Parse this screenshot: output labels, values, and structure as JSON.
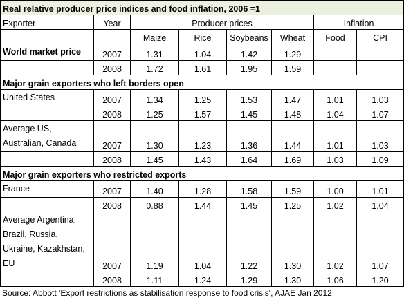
{
  "title": "Real relative producer price indices and food inflation, 2006 =1",
  "header": {
    "exporter": "Exporter",
    "year": "Year",
    "producer_prices": "Producer prices",
    "inflation": "Inflation",
    "columns": [
      "Maize",
      "Rice",
      "Soybeans",
      "Wheat",
      "Food",
      "CPI"
    ]
  },
  "groups": [
    {
      "heading": null,
      "entries": [
        {
          "exporter": "World market price",
          "rows": [
            {
              "year": "2007",
              "values": [
                "1.31",
                "1.04",
                "1.42",
                "1.29",
                null,
                null
              ]
            },
            {
              "year": "2008",
              "values": [
                "1.72",
                "1.61",
                "1.95",
                "1.59",
                null,
                null
              ]
            }
          ]
        }
      ]
    },
    {
      "heading": "Major grain exporters who left borders open",
      "entries": [
        {
          "exporter": "United States",
          "rows": [
            {
              "year": "2007",
              "values": [
                "1.34",
                "1.25",
                "1.53",
                "1.47",
                "1.01",
                "1.03"
              ]
            },
            {
              "year": "2008",
              "values": [
                "1.25",
                "1.57",
                "1.45",
                "1.48",
                "1.04",
                "1.07"
              ]
            }
          ]
        },
        {
          "exporter": "Average US, Australian, Canada",
          "rows": [
            {
              "year": "2007",
              "values": [
                "1.30",
                "1.23",
                "1.36",
                "1.44",
                "1.01",
                "1.03"
              ]
            },
            {
              "year": "2008",
              "values": [
                "1.45",
                "1.43",
                "1.64",
                "1.69",
                "1.03",
                "1.09"
              ]
            }
          ]
        }
      ]
    },
    {
      "heading": "Major grain exporters who restricted exports",
      "entries": [
        {
          "exporter": "France",
          "rows": [
            {
              "year": "2007",
              "values": [
                "1.40",
                "1.28",
                "1.58",
                "1.59",
                "1.00",
                "1.01"
              ]
            },
            {
              "year": "2008",
              "values": [
                "0.88",
                "1.44",
                "1.45",
                "1.25",
                "1.02",
                "1.04"
              ]
            }
          ]
        },
        {
          "exporter": "Average Argentina, Brazil, Russia, Ukraine, Kazakhstan, EU",
          "rows": [
            {
              "year": "2007",
              "values": [
                "1.19",
                "1.04",
                "1.22",
                "1.30",
                "1.02",
                "1.07"
              ]
            },
            {
              "year": "2008",
              "values": [
                "1.11",
                "1.24",
                "1.29",
                "1.30",
                "1.06",
                "1.20"
              ]
            }
          ]
        }
      ]
    }
  ],
  "source": "Source: Abbott 'Export restrictions as stabilisation response to food crisis', AJAE Jan 2012"
}
